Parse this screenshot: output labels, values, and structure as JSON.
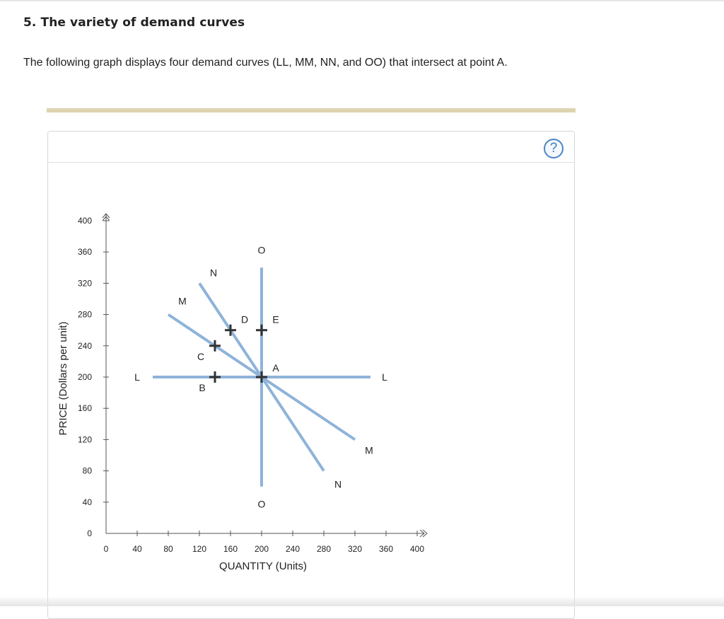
{
  "question": {
    "title": "5. The variety of demand curves",
    "text": "The following graph displays four demand curves (LL, MM, NN, and OO) that intersect at point A."
  },
  "help": {
    "label": "?"
  },
  "colors": {
    "curve": "#8fb3d9",
    "point": "#333333",
    "axis": "#555555",
    "accent_bar": "#ddd3b0"
  },
  "chart_data": {
    "type": "line",
    "xlabel": "QUANTITY (Units)",
    "ylabel": "PRICE (Dollars per unit)",
    "xlim": [
      0,
      400
    ],
    "ylim": [
      0,
      400
    ],
    "xticks": [
      "0",
      "40",
      "80",
      "120",
      "160",
      "200",
      "240",
      "280",
      "320",
      "360",
      "400"
    ],
    "yticks": [
      "0",
      "40",
      "80",
      "120",
      "160",
      "200",
      "240",
      "280",
      "320",
      "360",
      "400"
    ],
    "series": [
      {
        "name": "L",
        "points": [
          [
            60,
            200
          ],
          [
            340,
            200
          ]
        ],
        "label_start": "L",
        "label_end": "L"
      },
      {
        "name": "M",
        "points": [
          [
            80,
            280
          ],
          [
            320,
            120
          ]
        ],
        "label_start": "M",
        "label_end": "M"
      },
      {
        "name": "N",
        "points": [
          [
            120,
            320
          ],
          [
            280,
            80
          ]
        ],
        "label_start": "N",
        "label_end": "N"
      },
      {
        "name": "O",
        "points": [
          [
            200,
            340
          ],
          [
            200,
            60
          ]
        ],
        "label_start": "O",
        "label_end": "O"
      }
    ],
    "marked_points": [
      {
        "label": "A",
        "x": 200,
        "y": 200
      },
      {
        "label": "B",
        "x": 140,
        "y": 200
      },
      {
        "label": "C",
        "x": 140,
        "y": 240
      },
      {
        "label": "D",
        "x": 160,
        "y": 260
      },
      {
        "label": "E",
        "x": 200,
        "y": 260
      }
    ]
  }
}
